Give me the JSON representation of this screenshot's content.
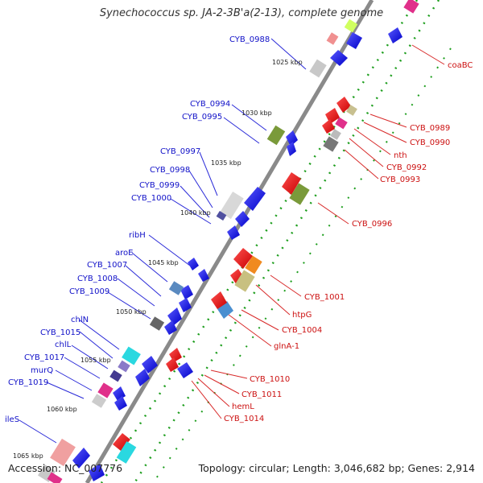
{
  "title": "Synechococcus sp. JA-2-3B'a(2-13), complete genome",
  "accession": "Accession: NC_007776",
  "topology": "Topology: circular; Length: 3,046,682 bp; Genes: 2,914",
  "kbp_labels": [
    "1025 kbp",
    "1030 kbp",
    "1035 kbp",
    "1040 kbp",
    "1045 kbp",
    "1050 kbp",
    "1055 kbp",
    "1060 kbp",
    "1065 kbp"
  ],
  "left_labels": [
    "CYB_0988",
    "CYB_0994",
    "CYB_0995",
    "CYB_0997",
    "CYB_0998",
    "CYB_0999",
    "CYB_1000",
    "ribH",
    "aroE",
    "CYB_1007",
    "CYB_1008",
    "CYB_1009",
    "chlN",
    "CYB_1015",
    "chlL",
    "CYB_1017",
    "murQ",
    "CYB_1019",
    "ileS"
  ],
  "right_labels": [
    "coaBC",
    "CYB_0989",
    "CYB_0990",
    "nth",
    "CYB_0992",
    "CYB_0993",
    "CYB_0996",
    "CYB_1001",
    "htpG",
    "CYB_1004",
    "glnA-1",
    "CYB_1010",
    "CYB_1011",
    "hemL",
    "CYB_1014"
  ],
  "colors": {
    "forward_strand": "#1a1ae6",
    "reverse_strand": "#e61a1a",
    "backbone": "#7a7a7a",
    "left_label": "#1010c8",
    "right_label": "#cc1010"
  }
}
